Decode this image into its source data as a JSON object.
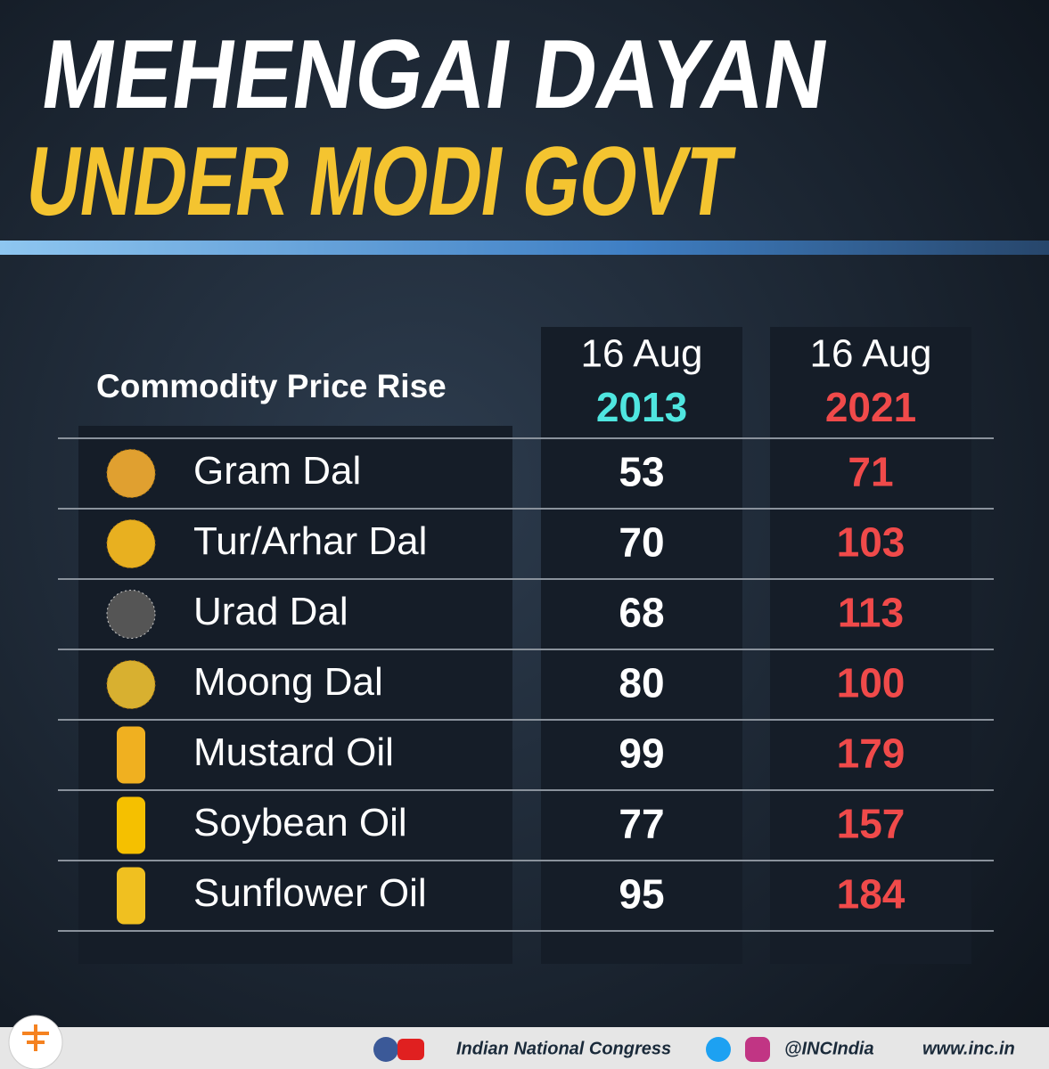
{
  "header": {
    "title_line1": "MEHENGAI DAYAN",
    "title_line2": "UNDER MODI GOVT"
  },
  "table": {
    "header_label": "Commodity Price Rise",
    "columns": [
      {
        "date": "16 Aug",
        "year": "2013"
      },
      {
        "date": "16 Aug",
        "year": "2021"
      }
    ],
    "rows": [
      {
        "name": "Gram Dal",
        "values": [
          "53",
          "71"
        ]
      },
      {
        "name": "Tur/Arhar Dal",
        "values": [
          "70",
          "103"
        ]
      },
      {
        "name": "Urad Dal",
        "values": [
          "68",
          "113"
        ]
      },
      {
        "name": "Moong Dal",
        "values": [
          "80",
          "100"
        ]
      },
      {
        "name": "Mustard Oil",
        "values": [
          "99",
          "179"
        ]
      },
      {
        "name": "Soybean Oil",
        "values": [
          "77",
          "157"
        ]
      },
      {
        "name": "Sunflower Oil",
        "values": [
          "95",
          "184"
        ]
      }
    ]
  },
  "footer": {
    "organization": "Indian National Congress",
    "handle": "@INCIndia",
    "website": "www.inc.in"
  }
}
